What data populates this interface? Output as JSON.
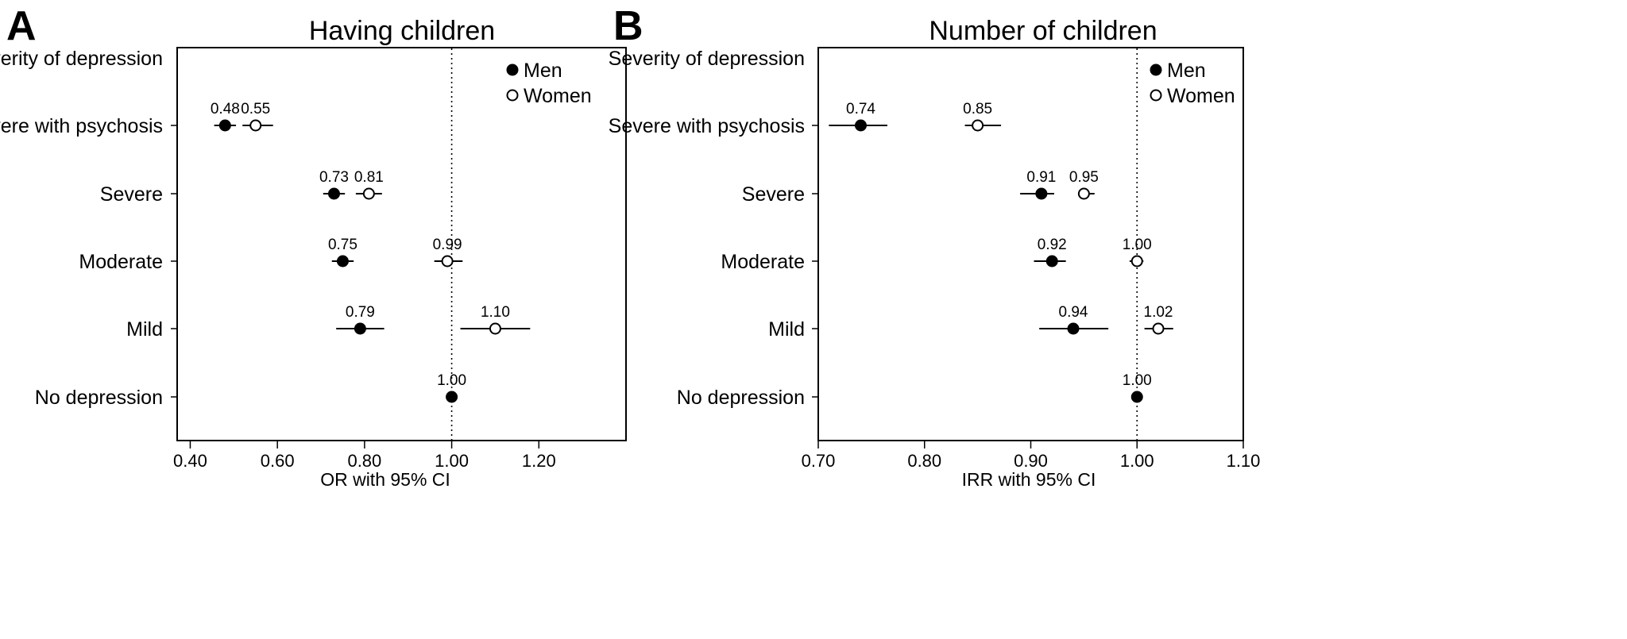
{
  "chart_data": [
    {
      "panel": "A",
      "type": "scatter",
      "title": "Having children",
      "xlabel": "OR with 95% CI",
      "ylabel": "",
      "header_label": "Severity of depression",
      "categories": [
        "Severe with psychosis",
        "Severe",
        "Moderate",
        "Mild",
        "No depression"
      ],
      "xlim": [
        0.37,
        1.4
      ],
      "xticks": [
        0.4,
        0.6,
        0.8,
        1.0,
        1.2
      ],
      "xtick_labels": [
        "0.40",
        "0.60",
        "0.80",
        "1.00",
        "1.20"
      ],
      "reference_line": 1.0,
      "legend_position": "top-right",
      "series": [
        {
          "name": "Men",
          "marker": "filled-circle",
          "points": [
            {
              "category": "Severe with psychosis",
              "value": 0.48,
              "label": "0.48",
              "ci": [
                0.455,
                0.505
              ]
            },
            {
              "category": "Severe",
              "value": 0.73,
              "label": "0.73",
              "ci": [
                0.705,
                0.755
              ]
            },
            {
              "category": "Moderate",
              "value": 0.75,
              "label": "0.75",
              "ci": [
                0.725,
                0.775
              ]
            },
            {
              "category": "Mild",
              "value": 0.79,
              "label": "0.79",
              "ci": [
                0.735,
                0.845
              ]
            },
            {
              "category": "No depression",
              "value": 1.0,
              "label": "1.00",
              "ci": null
            }
          ]
        },
        {
          "name": "Women",
          "marker": "open-circle",
          "points": [
            {
              "category": "Severe with psychosis",
              "value": 0.55,
              "label": "0.55",
              "ci": [
                0.52,
                0.59
              ]
            },
            {
              "category": "Severe",
              "value": 0.81,
              "label": "0.81",
              "ci": [
                0.78,
                0.84
              ]
            },
            {
              "category": "Moderate",
              "value": 0.99,
              "label": "0.99",
              "ci": [
                0.96,
                1.025
              ]
            },
            {
              "category": "Mild",
              "value": 1.1,
              "label": "1.10",
              "ci": [
                1.02,
                1.18
              ]
            }
          ]
        }
      ]
    },
    {
      "panel": "B",
      "type": "scatter",
      "title": "Number of children",
      "xlabel": "IRR with 95% CI",
      "ylabel": "",
      "header_label": "Severity of depression",
      "categories": [
        "Severe with psychosis",
        "Severe",
        "Moderate",
        "Mild",
        "No depression"
      ],
      "xlim": [
        0.7,
        1.1
      ],
      "xticks": [
        0.7,
        0.8,
        0.9,
        1.0,
        1.1
      ],
      "xtick_labels": [
        "0.70",
        "0.80",
        "0.90",
        "1.00",
        "1.10"
      ],
      "reference_line": 1.0,
      "legend_position": "top-right",
      "series": [
        {
          "name": "Men",
          "marker": "filled-circle",
          "points": [
            {
              "category": "Severe with psychosis",
              "value": 0.74,
              "label": "0.74",
              "ci": [
                0.71,
                0.765
              ]
            },
            {
              "category": "Severe",
              "value": 0.91,
              "label": "0.91",
              "ci": [
                0.89,
                0.922
              ]
            },
            {
              "category": "Moderate",
              "value": 0.92,
              "label": "0.92",
              "ci": [
                0.903,
                0.933
              ]
            },
            {
              "category": "Mild",
              "value": 0.94,
              "label": "0.94",
              "ci": [
                0.908,
                0.973
              ]
            },
            {
              "category": "No depression",
              "value": 1.0,
              "label": "1.00",
              "ci": null
            }
          ]
        },
        {
          "name": "Women",
          "marker": "open-circle",
          "points": [
            {
              "category": "Severe with psychosis",
              "value": 0.85,
              "label": "0.85",
              "ci": [
                0.838,
                0.872
              ]
            },
            {
              "category": "Severe",
              "value": 0.95,
              "label": "0.95",
              "ci": [
                0.945,
                0.96
              ]
            },
            {
              "category": "Moderate",
              "value": 1.0,
              "label": "1.00",
              "ci": [
                0.993,
                1.006
              ]
            },
            {
              "category": "Mild",
              "value": 1.02,
              "label": "1.02",
              "ci": [
                1.007,
                1.034
              ]
            }
          ]
        }
      ]
    }
  ]
}
